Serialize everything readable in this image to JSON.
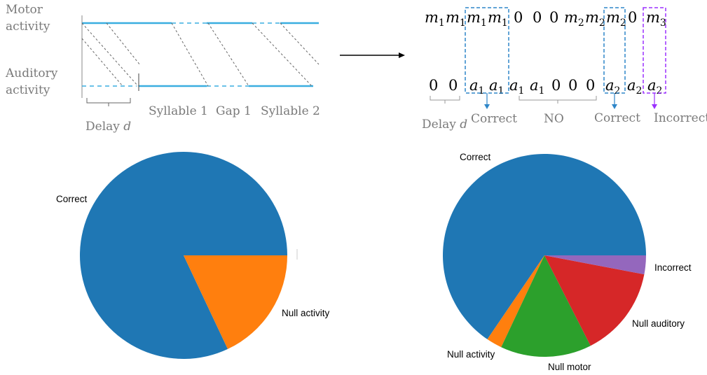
{
  "timing_diagram": {
    "motor_label_line1": "Motor",
    "motor_label_line2": "activity",
    "auditory_label_line1": "Auditory",
    "auditory_label_line2": "activity",
    "delay_label": "Delay",
    "delay_var": "d",
    "segment_labels": [
      "Syllable  1",
      "Gap 1",
      "Syllable  2"
    ],
    "line_color": "#3aaee0"
  },
  "sequence_diagram": {
    "motor_row": [
      {
        "base": "m",
        "sub": "1"
      },
      {
        "base": "m",
        "sub": "1"
      },
      {
        "base": "m",
        "sub": "1"
      },
      {
        "base": "m",
        "sub": "1"
      },
      {
        "base": "0",
        "sub": ""
      },
      {
        "base": "0",
        "sub": ""
      },
      {
        "base": "0",
        "sub": ""
      },
      {
        "base": "m",
        "sub": "2"
      },
      {
        "base": "m",
        "sub": "2"
      },
      {
        "base": "m",
        "sub": "2"
      },
      {
        "base": "0",
        "sub": ""
      },
      {
        "base": "m",
        "sub": "3"
      }
    ],
    "auditory_row": [
      {
        "base": "0",
        "sub": ""
      },
      {
        "base": "0",
        "sub": ""
      },
      {
        "base": "a",
        "sub": "1"
      },
      {
        "base": "a",
        "sub": "1"
      },
      {
        "base": "a",
        "sub": "1"
      },
      {
        "base": "a",
        "sub": "1"
      },
      {
        "base": "0",
        "sub": ""
      },
      {
        "base": "0",
        "sub": ""
      },
      {
        "base": "0",
        "sub": ""
      },
      {
        "base": "a",
        "sub": "2"
      },
      {
        "base": "a",
        "sub": "2"
      },
      {
        "base": "a",
        "sub": "2"
      }
    ],
    "delay_label": "Delay",
    "delay_var": "d",
    "outcome_labels": [
      "Correct",
      "NO",
      "Correct",
      "Incorrect"
    ],
    "correct_box_color": "#2e86c8",
    "incorrect_box_color": "#9b30ff"
  },
  "chart_data": [
    {
      "type": "pie",
      "slices": [
        {
          "label": "Correct",
          "value": 82,
          "color": "#1f77b4"
        },
        {
          "label": "Null activity",
          "value": 18,
          "color": "#ff7f0e"
        }
      ]
    },
    {
      "type": "pie",
      "slices": [
        {
          "label": "Correct",
          "value": 65.5,
          "color": "#1f77b4"
        },
        {
          "label": "Null activity",
          "value": 2.5,
          "color": "#ff7f0e"
        },
        {
          "label": "Null motor",
          "value": 14.5,
          "color": "#2ca02c"
        },
        {
          "label": "Null auditory",
          "value": 14.5,
          "color": "#d62728"
        },
        {
          "label": "Incorrect",
          "value": 3,
          "color": "#9467bd"
        }
      ]
    }
  ]
}
